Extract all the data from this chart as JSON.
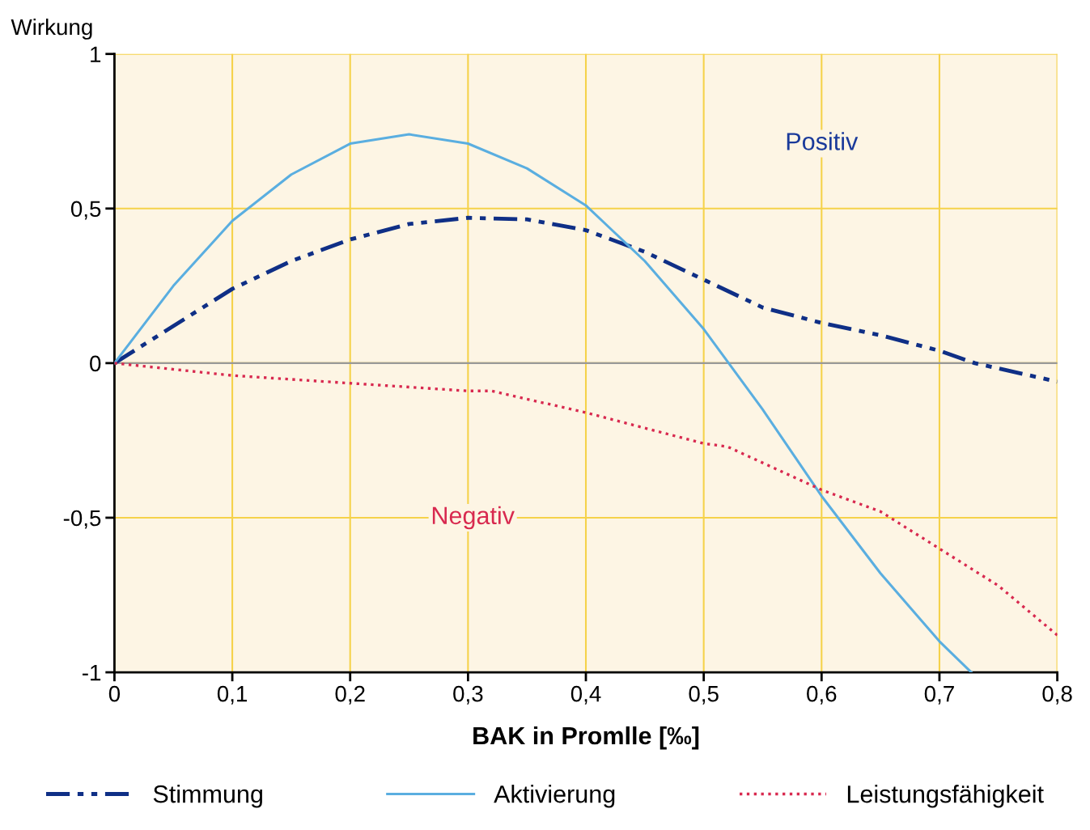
{
  "chart_data": {
    "type": "line",
    "xlabel": "BAK in Promlle [‰]",
    "ylabel": "Wirkung",
    "xlim": [
      0,
      0.8
    ],
    "ylim": [
      -1,
      1
    ],
    "xticks": [
      0,
      {
        "value": 0.1,
        "label": "0,1"
      },
      {
        "value": 0.2,
        "label": "0,2"
      },
      {
        "value": 0.3,
        "label": "0,3"
      },
      {
        "value": 0.4,
        "label": "0,4"
      },
      {
        "value": 0.5,
        "label": "0,5"
      },
      {
        "value": 0.6,
        "label": "0,6"
      },
      {
        "value": 0.7,
        "label": "0,7"
      },
      {
        "value": 0.8,
        "label": "0,8"
      }
    ],
    "yticks": [
      -1,
      {
        "value": -0.5,
        "label": "-0,5"
      },
      0,
      {
        "value": 0.5,
        "label": "0,5"
      },
      1
    ],
    "grid": true,
    "legend": "bottom",
    "ref_lines": [
      {
        "axis": "y",
        "value": 0,
        "color": "#999999"
      }
    ],
    "annotations": [
      "Positiv",
      "Negativ"
    ],
    "series": [
      {
        "name": "Stimmung",
        "color": "#0f2f86",
        "line_style": "dashdot",
        "x": [
          0,
          0.05,
          0.1,
          0.15,
          0.2,
          0.25,
          0.3,
          0.35,
          0.4,
          0.45,
          0.5,
          0.55,
          0.6,
          0.65,
          0.7,
          0.73,
          0.8
        ],
        "values": [
          0,
          0.12,
          0.24,
          0.33,
          0.4,
          0.45,
          0.47,
          0.465,
          0.43,
          0.36,
          0.27,
          0.18,
          0.13,
          0.09,
          0.04,
          0,
          -0.06
        ]
      },
      {
        "name": "Aktivierung",
        "color": "#5aaee0",
        "line_style": "solid",
        "x": [
          0,
          0.05,
          0.1,
          0.15,
          0.2,
          0.25,
          0.3,
          0.35,
          0.4,
          0.45,
          0.5,
          0.55,
          0.6,
          0.65,
          0.7,
          0.727
        ],
        "values": [
          0,
          0.25,
          0.46,
          0.61,
          0.71,
          0.74,
          0.71,
          0.63,
          0.51,
          0.33,
          0.11,
          -0.15,
          -0.43,
          -0.68,
          -0.9,
          -1
        ]
      },
      {
        "name": "Leistungsfähigkeit",
        "color": "#d8294f",
        "line_style": "dotted",
        "x": [
          0,
          0.1,
          0.2,
          0.3,
          0.32,
          0.4,
          0.5,
          0.52,
          0.6,
          0.65,
          0.7,
          0.75,
          0.8
        ],
        "values": [
          0,
          -0.04,
          -0.065,
          -0.09,
          -0.09,
          -0.16,
          -0.26,
          -0.27,
          -0.41,
          -0.48,
          -0.6,
          -0.72,
          -0.88
        ]
      }
    ]
  }
}
